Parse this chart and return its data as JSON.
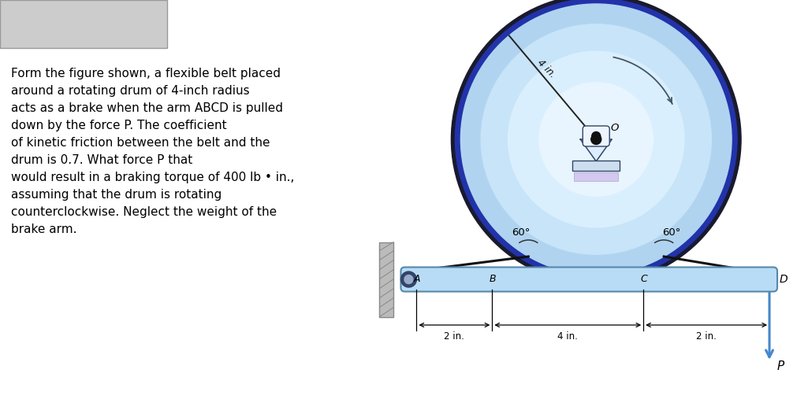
{
  "text_problem": "Form the figure shown, a flexible belt placed\naround a rotating drum of 4-inch radius\nacts as a brake when the arm ABCD is pulled\ndown by the force P. The coefficient\nof kinetic friction between the belt and the\ndrum is 0.7. What force P that\nwould result in a braking torque of 400 lb • in.,\nassuming that the drum is rotating\ncounterclockwise. Neglect the weight of the\nbrake arm.",
  "bg_color": "#ffffff",
  "text_color": "#000000",
  "radius_label": "4 in.",
  "dim_A_label": "2 in.",
  "dim_B_label": "4 in.",
  "dim_C_label": "2 in.",
  "label_A": "A",
  "label_B": "B",
  "label_C": "C",
  "label_D": "D",
  "label_O": "O",
  "label_P": "P",
  "label_60_left": "60°",
  "label_60_right": "60°",
  "drum_outer_color": "#1a1a2e",
  "drum_ring_color": "#2233aa",
  "drum_body_color": "#b0d4f0",
  "drum_inner1_color": "#c8e4f8",
  "drum_inner2_color": "#daeffe",
  "drum_inner3_color": "#e8f5ff",
  "arm_face_color": "#b8dcf5",
  "arm_edge_color": "#5588aa",
  "wall_face_color": "#bbbbbb",
  "wall_edge_color": "#888888",
  "belt_color": "#111111",
  "arrow_color": "#4488cc",
  "dim_color": "#000000",
  "hub_fill": "#ddeeff",
  "hub_edge": "#334466",
  "axle_color": "#111111",
  "gray_box_color": "#cccccc",
  "gray_box_edge": "#999999"
}
